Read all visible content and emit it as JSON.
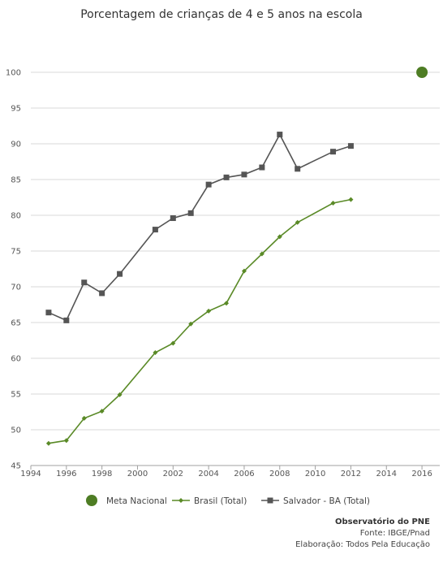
{
  "chart_data": {
    "type": "line",
    "title": "Porcentagem de crianças de 4 e 5 anos na escola",
    "xlabel": "",
    "ylabel": "",
    "xlim": [
      1994,
      2017
    ],
    "ylim": [
      45,
      100
    ],
    "x_ticks": [
      1994,
      1996,
      1998,
      2000,
      2002,
      2004,
      2006,
      2008,
      2010,
      2012,
      2014,
      2016
    ],
    "y_ticks": [
      45,
      50,
      55,
      60,
      65,
      70,
      75,
      80,
      85,
      90,
      95,
      100
    ],
    "grid": "horizontal",
    "legend_position": "bottom",
    "series": [
      {
        "name": "Meta Nacional",
        "marker": "large-circle",
        "color": "#4e7d24",
        "points": [
          [
            2016,
            100
          ]
        ]
      },
      {
        "name": "Brasil (Total)",
        "marker": "diamond",
        "color": "#5a8a27",
        "points": [
          [
            1995,
            48.1
          ],
          [
            1996,
            48.5
          ],
          [
            1997,
            51.6
          ],
          [
            1998,
            52.6
          ],
          [
            1999,
            54.9
          ],
          [
            2001,
            60.8
          ],
          [
            2002,
            62.1
          ],
          [
            2003,
            64.8
          ],
          [
            2004,
            66.6
          ],
          [
            2005,
            67.7
          ],
          [
            2006,
            72.2
          ],
          [
            2007,
            74.6
          ],
          [
            2008,
            77.0
          ],
          [
            2009,
            79.0
          ],
          [
            2011,
            81.7
          ],
          [
            2012,
            82.2
          ]
        ]
      },
      {
        "name": "Salvador - BA (Total)",
        "marker": "square",
        "color": "#555555",
        "points": [
          [
            1995,
            66.4
          ],
          [
            1996,
            65.3
          ],
          [
            1997,
            70.6
          ],
          [
            1998,
            69.1
          ],
          [
            1999,
            71.8
          ],
          [
            2001,
            78.0
          ],
          [
            2002,
            79.6
          ],
          [
            2003,
            80.3
          ],
          [
            2004,
            84.3
          ],
          [
            2005,
            85.3
          ],
          [
            2006,
            85.7
          ],
          [
            2007,
            86.7
          ],
          [
            2008,
            91.3
          ],
          [
            2009,
            86.5
          ],
          [
            2011,
            88.9
          ],
          [
            2012,
            89.7
          ]
        ]
      }
    ]
  },
  "footer": {
    "organization": "Observatório do PNE",
    "source": "Fonte: IBGE/Pnad",
    "elaboration": "Elaboração: Todos Pela Educação"
  }
}
